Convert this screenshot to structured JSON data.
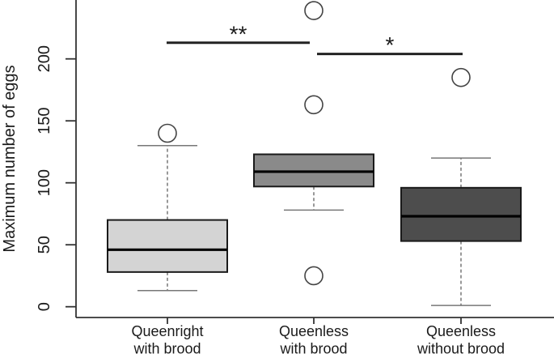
{
  "chart_data": {
    "type": "boxplot",
    "title": "",
    "xlabel": "",
    "ylabel": "Maximum number of eggs",
    "ylim": [
      0,
      250
    ],
    "yticks": [
      0,
      50,
      100,
      150,
      200
    ],
    "grid": false,
    "legend_position": "none",
    "categories": [
      {
        "line1": "Queenright",
        "line2": "with brood"
      },
      {
        "line1": "Queenless",
        "line2": "with brood"
      },
      {
        "line1": "Queenless",
        "line2": "without brood"
      }
    ],
    "boxes": [
      {
        "group": "Queenright with brood",
        "whisker_low": 13,
        "q1": 28,
        "median": 46,
        "q3": 70,
        "whisker_high": 130,
        "outliers": [
          140
        ],
        "fill": "#d4d4d4"
      },
      {
        "group": "Queenless with brood",
        "whisker_low": 78,
        "q1": 97,
        "median": 109,
        "q3": 123,
        "whisker_high": 123,
        "outliers": [
          25,
          163,
          239
        ],
        "fill": "#8a8a8a"
      },
      {
        "group": "Queenless without brood",
        "whisker_low": 1,
        "q1": 53,
        "median": 73,
        "q3": 96,
        "whisker_high": 120,
        "outliers": [
          185
        ],
        "fill": "#4d4d4d"
      }
    ],
    "significance_bars": [
      {
        "from_group": 0,
        "to_group": 1,
        "label": "**",
        "y_value": 213
      },
      {
        "from_group": 1,
        "to_group": 2,
        "label": "*",
        "y_value": 204
      }
    ],
    "colors": {
      "background": "#ffffff",
      "axis": "#333333",
      "text": "#1a1a1a",
      "box_border": "#1a1a1a",
      "median_line": "#000000",
      "whisker": "#555555",
      "whisker_cap": "#777777",
      "outlier_stroke": "#444444",
      "outlier_fill": "#ffffff",
      "significance_line": "#222222"
    }
  }
}
